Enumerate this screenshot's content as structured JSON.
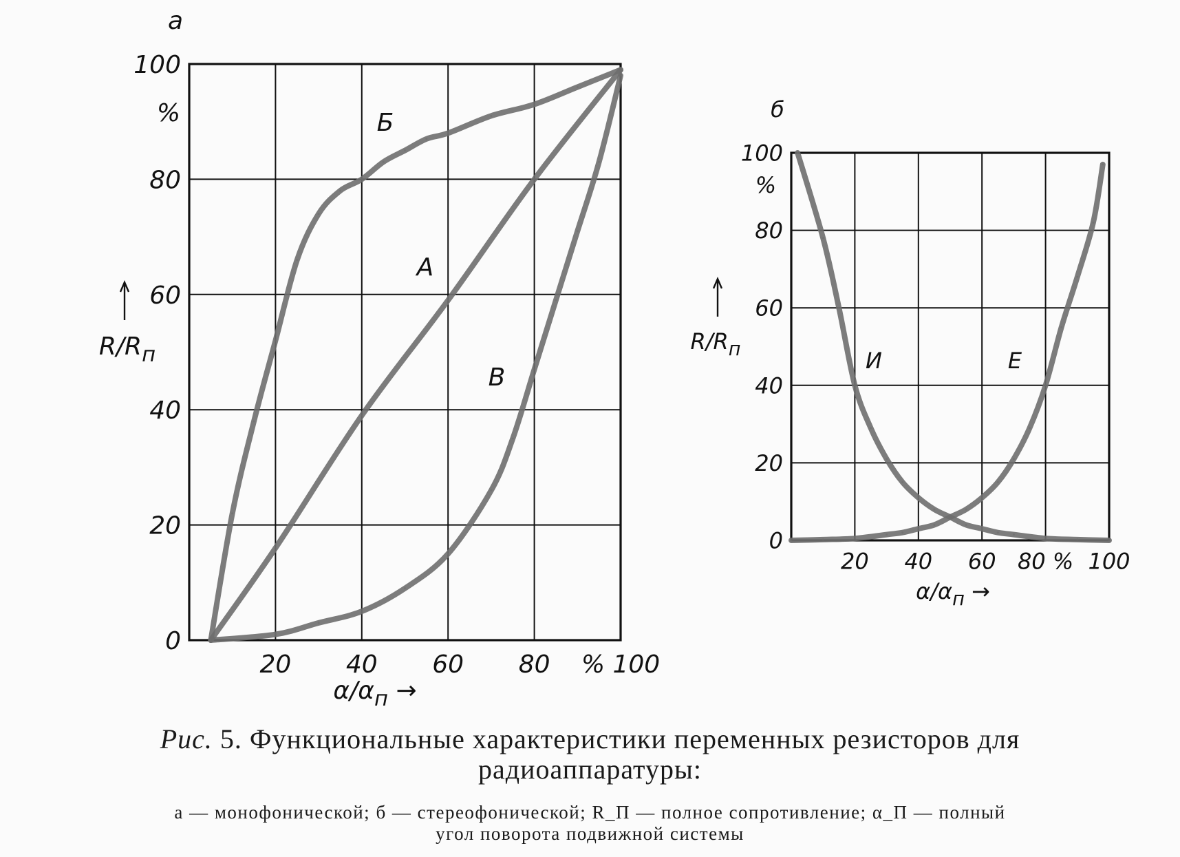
{
  "colors": {
    "paper": "#fbfbfb",
    "ink": "#111111",
    "curve": "#6e6e6e"
  },
  "charts": [
    {
      "chart_data": {
        "type": "line",
        "panel_label": "а",
        "xlim": [
          0,
          100
        ],
        "ylim": [
          0,
          100
        ],
        "grid": true,
        "x_ticks": [
          "20",
          "40",
          "60",
          "80",
          "% 100"
        ],
        "y_ticks": [
          "0",
          "20",
          "40",
          "60",
          "80",
          "100"
        ],
        "y_unit": "%",
        "xlabel": "α/α_п →",
        "ylabel": "R/R_п",
        "series": [
          {
            "name": "А",
            "x": [
              5,
              20,
              40,
              60,
              80,
              100
            ],
            "y": [
              0,
              16,
              39,
              59,
              80,
              99
            ]
          },
          {
            "name": "Б",
            "x": [
              5,
              10,
              15,
              20,
              25,
              30,
              35,
              40,
              45,
              50,
              55,
              60,
              70,
              80,
              90,
              100
            ],
            "y": [
              0,
              22,
              38,
              52,
              66,
              74,
              78,
              80,
              83,
              85,
              87,
              88,
              91,
              93,
              96,
              99
            ]
          },
          {
            "name": "В",
            "x": [
              5,
              20,
              30,
              40,
              50,
              60,
              70,
              75,
              80,
              85,
              90,
              95,
              100
            ],
            "y": [
              0,
              1,
              3,
              5,
              9,
              15,
              26,
              35,
              47,
              59,
              71,
              83,
              98
            ]
          }
        ]
      },
      "curve_labels": [
        "Б",
        "А",
        "В"
      ]
    },
    {
      "chart_data": {
        "type": "line",
        "panel_label": "б",
        "xlim": [
          0,
          100
        ],
        "ylim": [
          0,
          100
        ],
        "grid": true,
        "x_ticks": [
          "20",
          "40",
          "60",
          "80 %",
          "100"
        ],
        "y_ticks": [
          "0",
          "20",
          "40",
          "60",
          "80",
          "100"
        ],
        "y_unit": "%",
        "xlabel": "α/α_п →",
        "ylabel": "R/R_п",
        "series": [
          {
            "name": "И",
            "x": [
              2,
              10,
              15,
              20,
              25,
              30,
              35,
              40,
              45,
              50,
              55,
              60,
              65,
              70,
              80,
              90,
              100
            ],
            "y": [
              100,
              78,
              60,
              40,
              29,
              21,
              15,
              11,
              8,
              6,
              4,
              3,
              2,
              1.5,
              0.5,
              0.2,
              0
            ]
          },
          {
            "name": "Е",
            "x": [
              0,
              10,
              20,
              30,
              35,
              40,
              45,
              50,
              55,
              60,
              65,
              70,
              75,
              80,
              85,
              90,
              95,
              98
            ],
            "y": [
              0,
              0.2,
              0.5,
              1.5,
              2,
              3,
              4,
              6,
              8,
              11,
              15,
              21,
              29,
              40,
              55,
              68,
              82,
              97
            ]
          }
        ]
      },
      "curve_labels": [
        "И",
        "Е"
      ]
    }
  ],
  "caption": {
    "prefix": "Рис.",
    "number": "5.",
    "line1": "Функциональные характеристики переменных резисторов для",
    "line2": "радиоаппаратуры:",
    "legend_line1": "а — монофонической; б — стереофонической; R_П — полное сопротивление; α_П — полный",
    "legend_line2": "угол поворота подвижной системы"
  }
}
